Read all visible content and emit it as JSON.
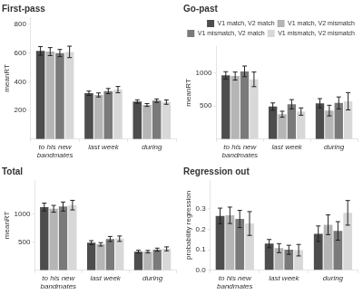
{
  "chart_data": [
    {
      "type": "bar",
      "title": "First-pass",
      "ylabel": "meanRT",
      "categories": [
        "to his new bandmates",
        "last week",
        "during"
      ],
      "series": [
        {
          "name": "V1 match, V2 match",
          "color": "#4d4d4d",
          "values": [
            615,
            320,
            262
          ],
          "errors": [
            30,
            15,
            12
          ]
        },
        {
          "name": "V1 match, V2 mismatch",
          "color": "#b5b5b5",
          "values": [
            610,
            308,
            238
          ],
          "errors": [
            28,
            14,
            10
          ]
        },
        {
          "name": "V1 mismatch, V2 match",
          "color": "#7a7a7a",
          "values": [
            600,
            335,
            268
          ],
          "errors": [
            25,
            18,
            12
          ]
        },
        {
          "name": "V1 mismatch, V2 mismatch",
          "color": "#d8d8d8",
          "values": [
            608,
            345,
            258
          ],
          "errors": [
            40,
            22,
            15
          ]
        }
      ],
      "ylim": [
        0,
        850
      ],
      "yticks": [
        200,
        400,
        600,
        800
      ],
      "grid": false
    },
    {
      "type": "bar",
      "title": "Go-past",
      "ylabel": "meanRT",
      "categories": [
        "to his new bandmates",
        "last week",
        "during"
      ],
      "series": [
        {
          "name": "V1 match, V2 match",
          "color": "#4d4d4d",
          "values": [
            960,
            490,
            540
          ],
          "errors": [
            55,
            55,
            70
          ]
        },
        {
          "name": "V1 match, V2 mismatch",
          "color": "#b5b5b5",
          "values": [
            950,
            375,
            430
          ],
          "errors": [
            60,
            45,
            80
          ]
        },
        {
          "name": "V1 mismatch, V2 match",
          "color": "#7a7a7a",
          "values": [
            1020,
            525,
            545
          ],
          "errors": [
            80,
            70,
            90
          ]
        },
        {
          "name": "V1 mismatch, V2 mismatch",
          "color": "#d8d8d8",
          "values": [
            900,
            415,
            570
          ],
          "errors": [
            110,
            55,
            130
          ]
        }
      ],
      "ylim": [
        0,
        1400
      ],
      "yticks": [
        500,
        1000
      ],
      "grid": false,
      "legend": "upper right"
    },
    {
      "type": "bar",
      "title": "Total",
      "ylabel": "meanRT",
      "categories": [
        "to his new bandmates",
        "last week",
        "during"
      ],
      "series": [
        {
          "name": "V1 match, V2 match",
          "color": "#4d4d4d",
          "values": [
            1120,
            490,
            330
          ],
          "errors": [
            70,
            35,
            25
          ]
        },
        {
          "name": "V1 match, V2 mismatch",
          "color": "#b5b5b5",
          "values": [
            1090,
            460,
            330
          ],
          "errors": [
            60,
            30,
            22
          ]
        },
        {
          "name": "V1 mismatch, V2 match",
          "color": "#7a7a7a",
          "values": [
            1130,
            555,
            365
          ],
          "errors": [
            80,
            45,
            28
          ]
        },
        {
          "name": "V1 mismatch, V2 mismatch",
          "color": "#d8d8d8",
          "values": [
            1155,
            560,
            380
          ],
          "errors": [
            85,
            48,
            35
          ]
        }
      ],
      "ylim": [
        0,
        1600
      ],
      "yticks": [
        500,
        1000
      ],
      "grid": false
    },
    {
      "type": "bar",
      "title": "Regression out",
      "ylabel": "probability regression",
      "categories": [
        "to his new bandmates",
        "last week",
        "during"
      ],
      "series": [
        {
          "name": "V1 match, V2 match",
          "color": "#4d4d4d",
          "values": [
            0.265,
            0.13,
            0.178
          ],
          "errors": [
            0.038,
            0.02,
            0.038
          ]
        },
        {
          "name": "V1 match, V2 mismatch",
          "color": "#b5b5b5",
          "values": [
            0.268,
            0.108,
            0.222
          ],
          "errors": [
            0.04,
            0.022,
            0.048
          ]
        },
        {
          "name": "V1 mismatch, V2 match",
          "color": "#7a7a7a",
          "values": [
            0.25,
            0.1,
            0.192
          ],
          "errors": [
            0.042,
            0.022,
            0.045
          ]
        },
        {
          "name": "V1 mismatch, V2 mismatch",
          "color": "#d8d8d8",
          "values": [
            0.228,
            0.098,
            0.28
          ],
          "errors": [
            0.058,
            0.028,
            0.06
          ]
        }
      ],
      "ylim": [
        0,
        0.44
      ],
      "yticks": [
        {
          "value": 0,
          "label": "0.0"
        },
        0.1,
        0.2,
        0.3
      ],
      "grid": false
    }
  ]
}
